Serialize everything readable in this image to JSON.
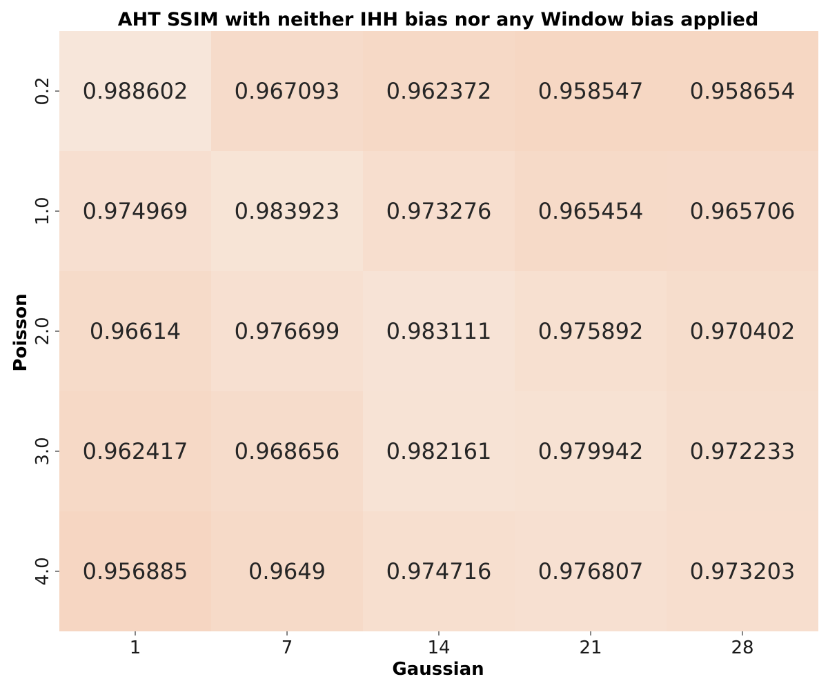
{
  "chart_data": {
    "type": "heatmap",
    "title": "AHT SSIM with neither IHH bias nor any Window bias applied",
    "xlabel": "Gaussian",
    "ylabel": "Poisson",
    "x_categories": [
      "1",
      "7",
      "14",
      "21",
      "28"
    ],
    "y_categories": [
      "0.2",
      "1.0",
      "2.0",
      "3.0",
      "4.0"
    ],
    "values": [
      [
        0.988602,
        0.967093,
        0.962372,
        0.958547,
        0.958654
      ],
      [
        0.974969,
        0.983923,
        0.973276,
        0.965454,
        0.965706
      ],
      [
        0.96614,
        0.976699,
        0.983111,
        0.975892,
        0.970402
      ],
      [
        0.962417,
        0.968656,
        0.982161,
        0.979942,
        0.972233
      ],
      [
        0.956885,
        0.9649,
        0.974716,
        0.976807,
        0.973203
      ]
    ],
    "labels": [
      [
        "0.988602",
        "0.967093",
        "0.962372",
        "0.958547",
        "0.958654"
      ],
      [
        "0.974969",
        "0.983923",
        "0.973276",
        "0.965454",
        "0.965706"
      ],
      [
        "0.96614",
        "0.976699",
        "0.983111",
        "0.975892",
        "0.970402"
      ],
      [
        "0.962417",
        "0.968656",
        "0.982161",
        "0.979942",
        "0.972233"
      ],
      [
        "0.956885",
        "0.9649",
        "0.974716",
        "0.976807",
        "0.973203"
      ]
    ],
    "colorbar": false,
    "grid": false,
    "color_scale": {
      "low_color": "#f6d6c2",
      "high_color": "#f7e6da"
    }
  }
}
